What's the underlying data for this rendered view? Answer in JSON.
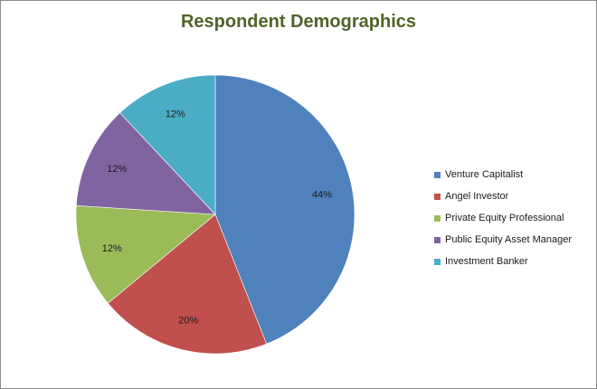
{
  "chart_data": {
    "type": "pie",
    "title": "Respondent Demographics",
    "categories": [
      "Venture Capitalist",
      "Angel Investor",
      "Private Equity Professional",
      "Public Equity Asset Manager",
      "Investment Banker"
    ],
    "values": [
      44,
      20,
      12,
      12,
      12
    ],
    "data_labels": [
      "44%",
      "20%",
      "12%",
      "12%",
      "12%"
    ],
    "colors": [
      "#4f81bd",
      "#c0504d",
      "#9bbb59",
      "#8064a2",
      "#4bacc6"
    ],
    "start": "12 o'clock",
    "direction": "clockwise",
    "legend_position": "right"
  }
}
